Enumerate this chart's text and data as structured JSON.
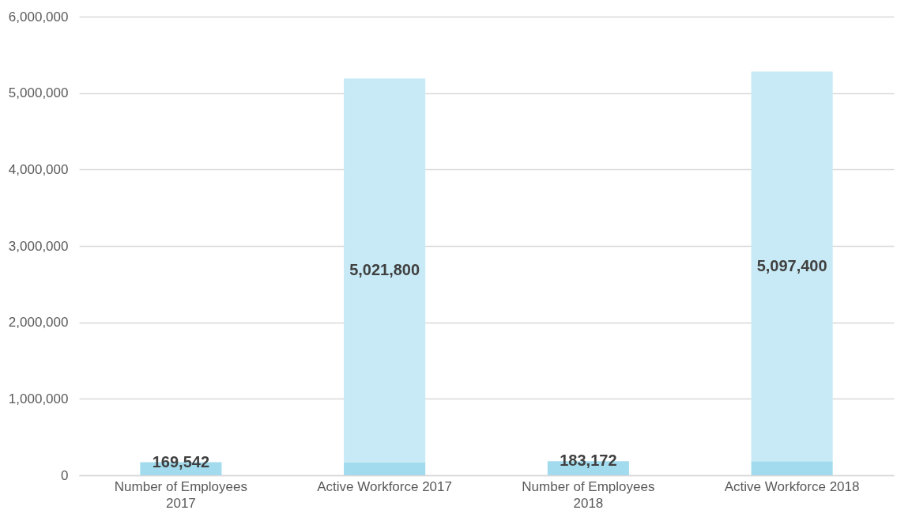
{
  "chart_data": {
    "type": "bar",
    "stacked": true,
    "categories": [
      "Number of Employees 2017",
      "Active Workforce 2017",
      "Number of Employees 2018",
      "Active Workforce 2018"
    ],
    "series": [
      {
        "color": "#a2dbee",
        "values": [
          169542,
          169542,
          183172,
          183172
        ],
        "value_labels": [
          "169,542",
          null,
          "183,172",
          null
        ]
      },
      {
        "color": "#c8eaf6",
        "values": [
          null,
          5021800,
          null,
          5097400
        ],
        "value_labels": [
          null,
          "5,021,800",
          null,
          "5,097,400"
        ]
      }
    ],
    "ylim": [
      0,
      6000000
    ],
    "yticks": [
      0,
      {
        "value": 1000000,
        "label": "1,000,000"
      },
      {
        "value": 2000000,
        "label": "2,000,000"
      },
      {
        "value": 3000000,
        "label": "3,000,000"
      },
      {
        "value": 4000000,
        "label": "4,000,000"
      },
      {
        "value": 5000000,
        "label": "5,000,000"
      },
      {
        "value": 6000000,
        "label": "6,000,000"
      }
    ],
    "grid": "y",
    "legend": false
  }
}
